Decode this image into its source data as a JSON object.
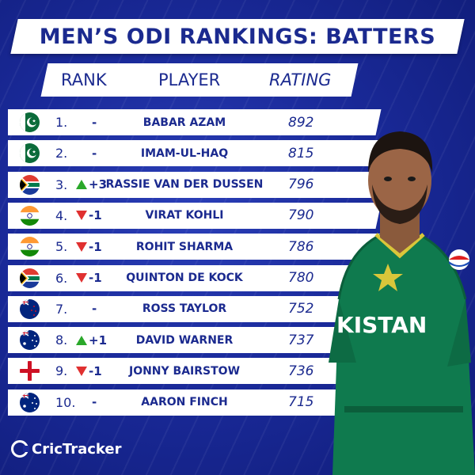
{
  "title": "MEN’S ODI RANKINGS: BATTERS",
  "headers": {
    "rank": "RANK",
    "player": "PLAYER",
    "rating": "RATING"
  },
  "rows": [
    {
      "rank": "1.",
      "flag": "pakistan",
      "move_dir": "none",
      "move": "-",
      "name": "BABAR AZAM",
      "rating": "892"
    },
    {
      "rank": "2.",
      "flag": "pakistan",
      "move_dir": "none",
      "move": "-",
      "name": "IMAM-UL-HAQ",
      "rating": "815"
    },
    {
      "rank": "3.",
      "flag": "south-africa",
      "move_dir": "up",
      "move": "+3",
      "name": "RASSIE VAN DER DUSSEN",
      "rating": "796"
    },
    {
      "rank": "4.",
      "flag": "india",
      "move_dir": "down",
      "move": "-1",
      "name": "VIRAT KOHLI",
      "rating": "790"
    },
    {
      "rank": "5.",
      "flag": "india",
      "move_dir": "down",
      "move": "-1",
      "name": "ROHIT SHARMA",
      "rating": "786"
    },
    {
      "rank": "6.",
      "flag": "south-africa",
      "move_dir": "down",
      "move": "-1",
      "name": "QUINTON DE KOCK",
      "rating": "780"
    },
    {
      "rank": "7.",
      "flag": "new-zealand",
      "move_dir": "none",
      "move": "-",
      "name": "ROSS TAYLOR",
      "rating": "752"
    },
    {
      "rank": "8.",
      "flag": "australia",
      "move_dir": "up",
      "move": "+1",
      "name": "DAVID WARNER",
      "rating": "737"
    },
    {
      "rank": "9.",
      "flag": "england",
      "move_dir": "down",
      "move": "-1",
      "name": "JONNY BAIRSTOW",
      "rating": "736"
    },
    {
      "rank": "10.",
      "flag": "australia",
      "move_dir": "none",
      "move": "-",
      "name": "AARON FINCH",
      "rating": "715"
    }
  ],
  "jersey_text": "KISTAN",
  "logo_text": "CricTracker",
  "colors": {
    "navy": "#1b2a8f",
    "background": "#1a2a9a",
    "up": "#2aa82a",
    "down": "#e03030",
    "jersey": "#0f7a4e"
  }
}
